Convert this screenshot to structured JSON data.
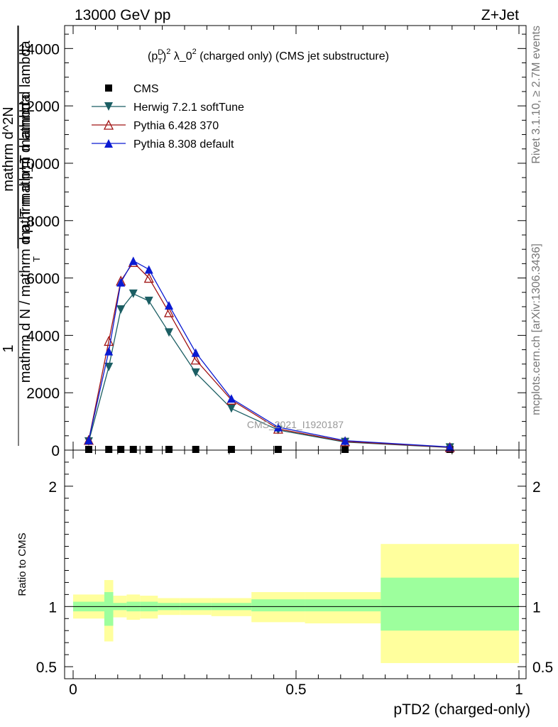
{
  "header": {
    "left": "13000 GeV pp",
    "right": "Z+Jet"
  },
  "side": {
    "rivet": "Rivet 3.1.10, ≥ 2.7M events",
    "mcplots": "mcplots.cern.ch [arXiv:1306.3436]"
  },
  "chart_data": [
    {
      "type": "line",
      "title": "(p_T^D)^2 λ_0^2 (charged only) (CMS jet substructure)",
      "title_parts": {
        "pre": "(p",
        "sup1": "D",
        "sub1": "T",
        "post1": ")",
        "sup2": "2",
        "mid": " λ_0",
        "sup3": "2",
        "post2": " (charged only) (CMS jet substructure)"
      },
      "xlabel": "pTD2 (charged-only)",
      "ylabel_parts": [
        "1",
        "mathrm d N / mathrm d p_T mathrm d lambda",
        "mathrm d^2N",
        "mathrm d p_T mathrm d lambda"
      ],
      "ylabel_sub": "T",
      "watermark": "CMS_2021_I1920187",
      "xlim": [
        0,
        1
      ],
      "ylim": [
        0,
        14800
      ],
      "yticks": [
        0,
        2000,
        4000,
        6000,
        8000,
        10000,
        12000,
        14000
      ],
      "ytick_labels": [
        "0",
        "2000",
        "4000",
        "6000",
        "8000",
        "10000",
        "12000",
        "14000"
      ],
      "xticks": [
        0,
        0.5,
        1
      ],
      "xtick_labels": [
        "0",
        "0.5",
        "1"
      ],
      "series": [
        {
          "name": "CMS",
          "marker": "square",
          "color": "#000000",
          "x": [
            0.035,
            0.08,
            0.107,
            0.135,
            0.17,
            0.215,
            0.275,
            0.355,
            0.46,
            0.61,
            0.845
          ],
          "y": [
            0,
            0,
            0,
            0,
            0,
            0,
            0,
            0,
            0,
            0,
            0
          ]
        },
        {
          "name": "Herwig 7.2.1 softTune",
          "marker": "triangle-down",
          "color": "#1b5e63",
          "x": [
            0.035,
            0.08,
            0.107,
            0.135,
            0.17,
            0.215,
            0.275,
            0.355,
            0.46,
            0.61,
            0.845
          ],
          "y": [
            300,
            2900,
            4900,
            5450,
            5200,
            4100,
            2700,
            1450,
            700,
            280,
            90
          ]
        },
        {
          "name": "Pythia 6.428 370",
          "marker": "triangle-up-open",
          "color": "#a01414",
          "x": [
            0.035,
            0.08,
            0.107,
            0.135,
            0.17,
            0.215,
            0.275,
            0.355,
            0.46,
            0.61,
            0.845
          ],
          "y": [
            350,
            3800,
            5900,
            6550,
            6000,
            4800,
            3150,
            1750,
            740,
            300,
            100
          ]
        },
        {
          "name": "Pythia 8.308 default",
          "marker": "triangle-up",
          "color": "#0a1ad2",
          "x": [
            0.035,
            0.08,
            0.107,
            0.135,
            0.17,
            0.215,
            0.275,
            0.355,
            0.46,
            0.61,
            0.845
          ],
          "y": [
            350,
            3450,
            5850,
            6600,
            6300,
            5050,
            3400,
            1800,
            800,
            330,
            110
          ]
        }
      ]
    },
    {
      "type": "area",
      "ylabel": "Ratio to CMS",
      "ylim": [
        0.4,
        2.3
      ],
      "yticks": [
        0.5,
        1,
        2
      ],
      "ytick_labels": [
        "0.5",
        "1",
        "2"
      ],
      "xticks": [
        0,
        0.5,
        1
      ],
      "xtick_labels": [
        "0",
        "0.5",
        "1"
      ],
      "reference_line": 1,
      "bands": [
        {
          "x0": 0.0,
          "x1": 0.07,
          "inner": [
            0.96,
            1.04
          ],
          "outer": [
            0.9,
            1.1
          ]
        },
        {
          "x0": 0.07,
          "x1": 0.09,
          "inner": [
            0.84,
            1.12
          ],
          "outer": [
            0.71,
            1.22
          ]
        },
        {
          "x0": 0.09,
          "x1": 0.12,
          "inner": [
            0.97,
            1.03
          ],
          "outer": [
            0.91,
            1.09
          ]
        },
        {
          "x0": 0.12,
          "x1": 0.15,
          "inner": [
            0.96,
            1.04
          ],
          "outer": [
            0.89,
            1.1
          ]
        },
        {
          "x0": 0.15,
          "x1": 0.19,
          "inner": [
            0.96,
            1.04
          ],
          "outer": [
            0.9,
            1.09
          ]
        },
        {
          "x0": 0.19,
          "x1": 0.24,
          "inner": [
            0.97,
            1.03
          ],
          "outer": [
            0.93,
            1.07
          ]
        },
        {
          "x0": 0.24,
          "x1": 0.31,
          "inner": [
            0.97,
            1.03
          ],
          "outer": [
            0.93,
            1.07
          ]
        },
        {
          "x0": 0.31,
          "x1": 0.4,
          "inner": [
            0.97,
            1.03
          ],
          "outer": [
            0.92,
            1.07
          ]
        },
        {
          "x0": 0.4,
          "x1": 0.52,
          "inner": [
            0.96,
            1.06
          ],
          "outer": [
            0.87,
            1.12
          ]
        },
        {
          "x0": 0.52,
          "x1": 0.69,
          "inner": [
            0.96,
            1.06
          ],
          "outer": [
            0.86,
            1.12
          ]
        },
        {
          "x0": 0.69,
          "x1": 1.0,
          "inner": [
            0.8,
            1.24
          ],
          "outer": [
            0.53,
            1.52
          ]
        }
      ],
      "colors": {
        "inner": "#9dff9d",
        "outer": "#ffff9d"
      }
    }
  ]
}
